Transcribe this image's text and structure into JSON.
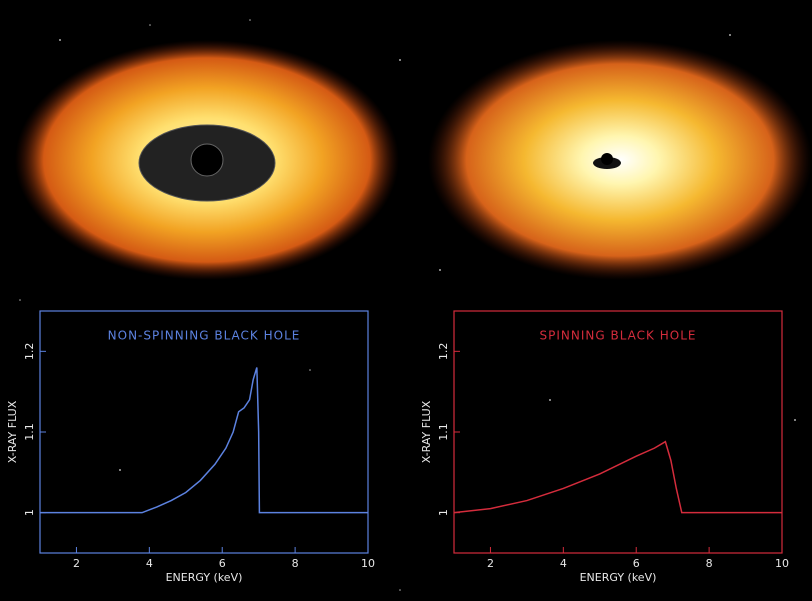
{
  "chart_data": [
    {
      "type": "line",
      "title": "NON-SPINNING BLACK HOLE",
      "x_label": "ENERGY (keV)",
      "y_label": "X-RAY FLUX",
      "color": "#5c82e0",
      "x": [
        1,
        3.8,
        4.2,
        4.6,
        5.0,
        5.4,
        5.8,
        6.1,
        6.3,
        6.45,
        6.6,
        6.75,
        6.85,
        6.95,
        7.0,
        7.02,
        7.1,
        10
      ],
      "values": [
        1,
        1,
        1.007,
        1.015,
        1.025,
        1.04,
        1.06,
        1.08,
        1.1,
        1.125,
        1.13,
        1.14,
        1.165,
        1.18,
        1.1,
        1.0,
        1.0,
        1
      ],
      "xlim": [
        1,
        10
      ],
      "ylim": [
        0.95,
        1.25
      ],
      "xticks": [
        2,
        4,
        6,
        8,
        10
      ],
      "yticks": [
        1,
        1.1,
        1.2
      ]
    },
    {
      "type": "line",
      "title": "SPINNING BLACK HOLE",
      "x_label": "ENERGY (keV)",
      "y_label": "X-RAY FLUX",
      "color": "#d42c3c",
      "x": [
        1,
        2,
        3,
        4,
        5,
        6,
        6.5,
        6.8,
        6.95,
        7.1,
        7.25,
        10
      ],
      "values": [
        1,
        1.005,
        1.015,
        1.03,
        1.048,
        1.07,
        1.08,
        1.088,
        1.065,
        1.03,
        1.0,
        1
      ],
      "xlim": [
        1,
        10
      ],
      "ylim": [
        0.95,
        1.25
      ],
      "xticks": [
        2,
        4,
        6,
        8,
        10
      ],
      "yticks": [
        1,
        1.1,
        1.2
      ]
    }
  ]
}
